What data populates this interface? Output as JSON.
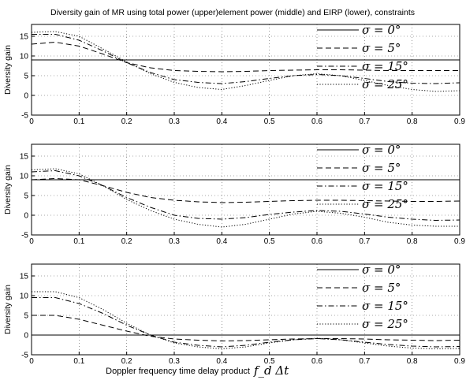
{
  "figure": {
    "title": "Diversity gain of MR using total power (upper)element power (middle) and EIRP (lower), constraints",
    "xlabel_text": "Doppler frequency time  delay product",
    "xlabel_math": "f_d Δt"
  },
  "legend_labels": [
    "σ = 0°",
    "σ = 5°",
    "σ = 15°",
    "σ = 25°"
  ],
  "chart_data": [
    {
      "type": "line",
      "panel": "upper",
      "ylabel": "Diversity gain",
      "xlim": [
        0,
        0.9
      ],
      "ylim": [
        -5,
        18
      ],
      "xticks": [
        0,
        0.1,
        0.2,
        0.3,
        0.4,
        0.5,
        0.6,
        0.7,
        0.8,
        0.9
      ],
      "yticks": [
        -5,
        0,
        5,
        10,
        15
      ],
      "grid": true,
      "legend_position": "right",
      "series": [
        {
          "name": "σ = 0°",
          "style": "solid",
          "x": [
            0,
            0.9
          ],
          "y": [
            9,
            9
          ]
        },
        {
          "name": "σ = 5°",
          "style": "dashed",
          "x": [
            0,
            0.05,
            0.1,
            0.15,
            0.2,
            0.25,
            0.3,
            0.35,
            0.4,
            0.45,
            0.5,
            0.55,
            0.6,
            0.65,
            0.7,
            0.75,
            0.8,
            0.85,
            0.9
          ],
          "y": [
            13,
            13.5,
            12.5,
            10.5,
            8.3,
            7,
            6.3,
            6.1,
            6,
            6.1,
            6.3,
            6.4,
            6.5,
            6.5,
            6.4,
            6.3,
            6.3,
            6.3,
            6.3
          ]
        },
        {
          "name": "σ = 15°",
          "style": "dashdot",
          "x": [
            0,
            0.05,
            0.1,
            0.15,
            0.2,
            0.25,
            0.3,
            0.35,
            0.4,
            0.45,
            0.5,
            0.55,
            0.6,
            0.65,
            0.7,
            0.75,
            0.8,
            0.85,
            0.9
          ],
          "y": [
            15.5,
            15.5,
            14,
            11.3,
            8.3,
            5.8,
            4,
            3.3,
            3,
            3.5,
            4.3,
            5,
            5.3,
            5,
            4.3,
            3.5,
            3.1,
            3,
            3.2
          ]
        },
        {
          "name": "σ = 25°",
          "style": "dotted",
          "x": [
            0,
            0.05,
            0.1,
            0.15,
            0.2,
            0.25,
            0.3,
            0.35,
            0.4,
            0.45,
            0.5,
            0.55,
            0.6,
            0.65,
            0.7,
            0.75,
            0.8,
            0.85,
            0.9
          ],
          "y": [
            16,
            16.2,
            15,
            11.8,
            8.5,
            5.5,
            3.3,
            2,
            1.5,
            2.5,
            3.8,
            5,
            5.5,
            5,
            3.8,
            2.5,
            1.5,
            1,
            1.2
          ]
        }
      ]
    },
    {
      "type": "line",
      "panel": "middle",
      "ylabel": "Diversity gain",
      "xlim": [
        0,
        0.9
      ],
      "ylim": [
        -5,
        18
      ],
      "xticks": [
        0,
        0.1,
        0.2,
        0.3,
        0.4,
        0.5,
        0.6,
        0.7,
        0.8,
        0.9
      ],
      "yticks": [
        -5,
        0,
        5,
        10,
        15
      ],
      "grid": true,
      "legend_position": "right",
      "series": [
        {
          "name": "σ = 0°",
          "style": "solid",
          "x": [
            0,
            0.9
          ],
          "y": [
            9,
            9
          ]
        },
        {
          "name": "σ = 5°",
          "style": "dashed",
          "x": [
            0,
            0.05,
            0.1,
            0.15,
            0.2,
            0.25,
            0.3,
            0.35,
            0.4,
            0.45,
            0.5,
            0.55,
            0.6,
            0.65,
            0.7,
            0.75,
            0.8,
            0.85,
            0.9
          ],
          "y": [
            9,
            9.3,
            9,
            7.5,
            5.8,
            4.5,
            3.8,
            3.4,
            3.2,
            3.3,
            3.5,
            3.7,
            3.8,
            3.8,
            3.7,
            3.6,
            3.5,
            3.5,
            3.6
          ]
        },
        {
          "name": "σ = 15°",
          "style": "dashdot",
          "x": [
            0,
            0.05,
            0.1,
            0.15,
            0.2,
            0.25,
            0.3,
            0.35,
            0.4,
            0.45,
            0.5,
            0.55,
            0.6,
            0.65,
            0.7,
            0.75,
            0.8,
            0.85,
            0.9
          ],
          "y": [
            11,
            11.3,
            10,
            7.5,
            4.5,
            2,
            0,
            -0.8,
            -1,
            -0.6,
            0.2,
            0.8,
            1.2,
            1,
            0.3,
            -0.5,
            -1,
            -1.3,
            -1.2
          ]
        },
        {
          "name": "σ = 25°",
          "style": "dotted",
          "x": [
            0,
            0.05,
            0.1,
            0.15,
            0.2,
            0.25,
            0.3,
            0.35,
            0.4,
            0.45,
            0.5,
            0.55,
            0.6,
            0.65,
            0.7,
            0.75,
            0.8,
            0.85,
            0.9
          ],
          "y": [
            11.5,
            11.8,
            10.5,
            7.5,
            4,
            1.2,
            -1,
            -2.3,
            -3,
            -2.3,
            -1,
            0.3,
            1,
            0.5,
            -0.5,
            -1.8,
            -2.5,
            -2.8,
            -2.8
          ]
        }
      ]
    },
    {
      "type": "line",
      "panel": "lower",
      "ylabel": "Diversity gain",
      "xlim": [
        0,
        0.9
      ],
      "ylim": [
        -5,
        18
      ],
      "xticks": [
        0,
        0.1,
        0.2,
        0.3,
        0.4,
        0.5,
        0.6,
        0.7,
        0.8,
        0.9
      ],
      "yticks": [
        -5,
        0,
        5,
        10,
        15
      ],
      "grid": true,
      "legend_position": "right",
      "series": [
        {
          "name": "σ = 0°",
          "style": "solid",
          "x": [
            0,
            0.9
          ],
          "y": [
            0,
            0
          ]
        },
        {
          "name": "σ = 5°",
          "style": "dashed",
          "x": [
            0,
            0.05,
            0.1,
            0.15,
            0.2,
            0.25,
            0.3,
            0.35,
            0.4,
            0.45,
            0.5,
            0.55,
            0.6,
            0.65,
            0.7,
            0.75,
            0.8,
            0.85,
            0.9
          ],
          "y": [
            5,
            5,
            4,
            2.5,
            1,
            -0.3,
            -1,
            -1.3,
            -1.5,
            -1.4,
            -1.2,
            -1,
            -0.9,
            -0.9,
            -1,
            -1.2,
            -1.3,
            -1.4,
            -1.3
          ]
        },
        {
          "name": "σ = 15°",
          "style": "dashdot",
          "x": [
            0,
            0.05,
            0.1,
            0.15,
            0.2,
            0.25,
            0.3,
            0.35,
            0.4,
            0.45,
            0.5,
            0.55,
            0.6,
            0.65,
            0.7,
            0.75,
            0.8,
            0.85,
            0.9
          ],
          "y": [
            9.5,
            9.5,
            8,
            5.5,
            2.5,
            0,
            -1.8,
            -2.6,
            -3,
            -2.6,
            -1.8,
            -1.2,
            -0.9,
            -1.2,
            -1.8,
            -2.4,
            -2.8,
            -3,
            -2.9
          ]
        },
        {
          "name": "σ = 25°",
          "style": "dotted",
          "x": [
            0,
            0.05,
            0.1,
            0.15,
            0.2,
            0.25,
            0.3,
            0.35,
            0.4,
            0.45,
            0.5,
            0.55,
            0.6,
            0.65,
            0.7,
            0.75,
            0.8,
            0.85,
            0.9
          ],
          "y": [
            11,
            11,
            9.5,
            6.5,
            3,
            0,
            -2,
            -3,
            -3.5,
            -3,
            -2,
            -1.2,
            -0.8,
            -1.2,
            -2,
            -2.8,
            -3.3,
            -3.5,
            -3.4
          ]
        }
      ]
    }
  ]
}
